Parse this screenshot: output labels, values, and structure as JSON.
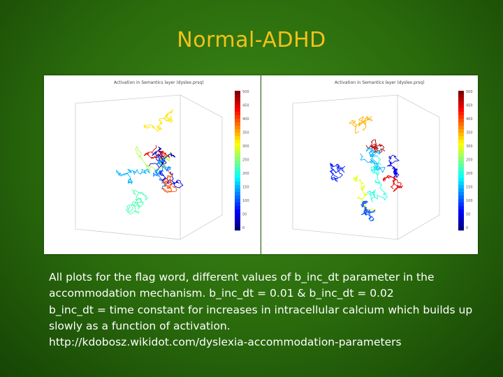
{
  "slide": {
    "title": "Normal-ADHD"
  },
  "plots": [
    {
      "title": "Activation in Semantics layer (dyslex.prsq)",
      "colorbar_ticks": [
        "500",
        "450",
        "400",
        "350",
        "300",
        "250",
        "200",
        "150",
        "100",
        "50",
        "0"
      ]
    },
    {
      "title": "Activation in Semantics layer (dyslex.prsq)",
      "colorbar_ticks": [
        "500",
        "450",
        "400",
        "350",
        "300",
        "250",
        "200",
        "150",
        "100",
        "50",
        "0"
      ]
    }
  ],
  "caption": {
    "line1": "All plots for the flag word, different values of b_inc_dt parameter in the",
    "line2": "accommodation mechanism. b_inc_dt = 0.01 & b_inc_dt = 0.02",
    "line3": "b_inc_dt = time constant for increases in intracellular calcium which builds up",
    "line4": "slowly as a function of activation.",
    "line5": "http://kdobosz.wikidot.com/dyslexia-accommodation-parameters"
  }
}
